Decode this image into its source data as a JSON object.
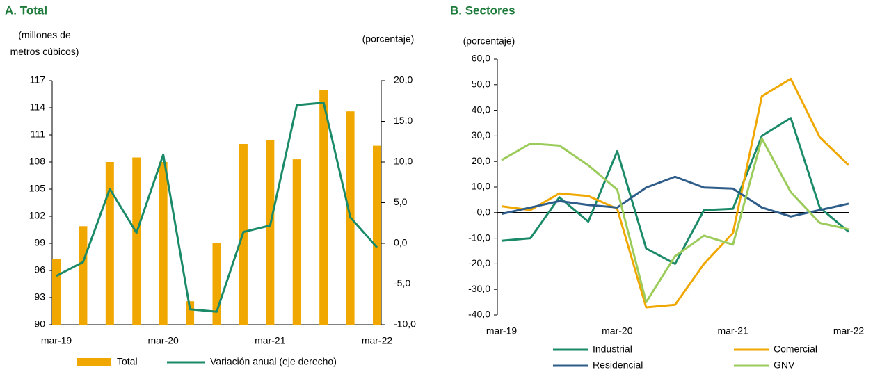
{
  "chart_data": [
    {
      "type": "combo",
      "title": "A. Total",
      "y_label": "(millones de metros cúbicos)",
      "y2_label": "(porcentaje)",
      "categories": [
        "mar-19",
        null,
        null,
        null,
        "mar-20",
        null,
        null,
        null,
        "mar-21",
        null,
        null,
        null,
        "mar-22"
      ],
      "ylim": [
        90,
        117
      ],
      "yticks": [
        90,
        93,
        96,
        99,
        102,
        105,
        108,
        111,
        114,
        117
      ],
      "y2lim": [
        -10,
        20
      ],
      "y2ticks": [
        {
          "value": -10,
          "label": "-10,0"
        },
        {
          "value": -5,
          "label": "-5,0"
        },
        {
          "value": 0,
          "label": "0,0"
        },
        {
          "value": 5,
          "label": "5,0"
        },
        {
          "value": 10,
          "label": "10,0"
        },
        {
          "value": 15,
          "label": "15,0"
        },
        {
          "value": 20,
          "label": "20,0"
        }
      ],
      "series": [
        {
          "name": "Total",
          "type": "bar",
          "color": "#f0a800",
          "values": [
            97.3,
            100.9,
            108.0,
            108.5,
            108.0,
            92.6,
            99.0,
            110.0,
            110.4,
            108.3,
            116.0,
            113.6,
            109.8
          ]
        },
        {
          "name": "Variación anual (eje derecho)",
          "type": "line",
          "axis": "y2",
          "color": "#1a8a68",
          "values": [
            -4.0,
            -2.3,
            6.7,
            1.3,
            10.9,
            -8.1,
            -8.4,
            1.4,
            2.2,
            17.0,
            17.3,
            3.2,
            -0.5
          ]
        }
      ]
    },
    {
      "type": "line",
      "title": "B. Sectores",
      "y_label": "(porcentaje)",
      "categories": [
        "mar-19",
        null,
        null,
        null,
        "mar-20",
        null,
        null,
        null,
        "mar-21",
        null,
        null,
        null,
        "mar-22"
      ],
      "ylim": [
        -40,
        60
      ],
      "yticks": [
        {
          "value": -40,
          "label": "-40,0"
        },
        {
          "value": -30,
          "label": "-30,0"
        },
        {
          "value": -20,
          "label": "-20,0"
        },
        {
          "value": -10,
          "label": "-10,0"
        },
        {
          "value": 0,
          "label": "0,0"
        },
        {
          "value": 10,
          "label": "10,0"
        },
        {
          "value": 20,
          "label": "20,0"
        },
        {
          "value": 30,
          "label": "30,0"
        },
        {
          "value": 40,
          "label": "40,0"
        },
        {
          "value": 50,
          "label": "50,0"
        },
        {
          "value": 60,
          "label": "60,0"
        }
      ],
      "series": [
        {
          "name": "Industrial",
          "color": "#1a8a68",
          "values": [
            -11,
            -10,
            6,
            -3.5,
            24,
            -14,
            -20,
            1,
            1.5,
            30,
            37,
            2,
            -7.5
          ]
        },
        {
          "name": "Comercial",
          "color": "#f0a800",
          "values": [
            2.5,
            1,
            7.5,
            6.5,
            1.5,
            -37,
            -36,
            -20,
            -8,
            45.5,
            52.3,
            29.5,
            18.5
          ]
        },
        {
          "name": "Residencial",
          "color": "#2e5d8a",
          "values": [
            -0.5,
            2,
            4.5,
            3,
            2,
            9.8,
            14,
            9.8,
            9.4,
            2,
            -1.5,
            1,
            3.5
          ]
        },
        {
          "name": "GNV",
          "color": "#9bcb5a",
          "values": [
            20.5,
            27,
            26.2,
            18.5,
            9,
            -35,
            -17,
            -9,
            -12.5,
            29,
            8,
            -4,
            -6.5
          ]
        }
      ]
    }
  ]
}
